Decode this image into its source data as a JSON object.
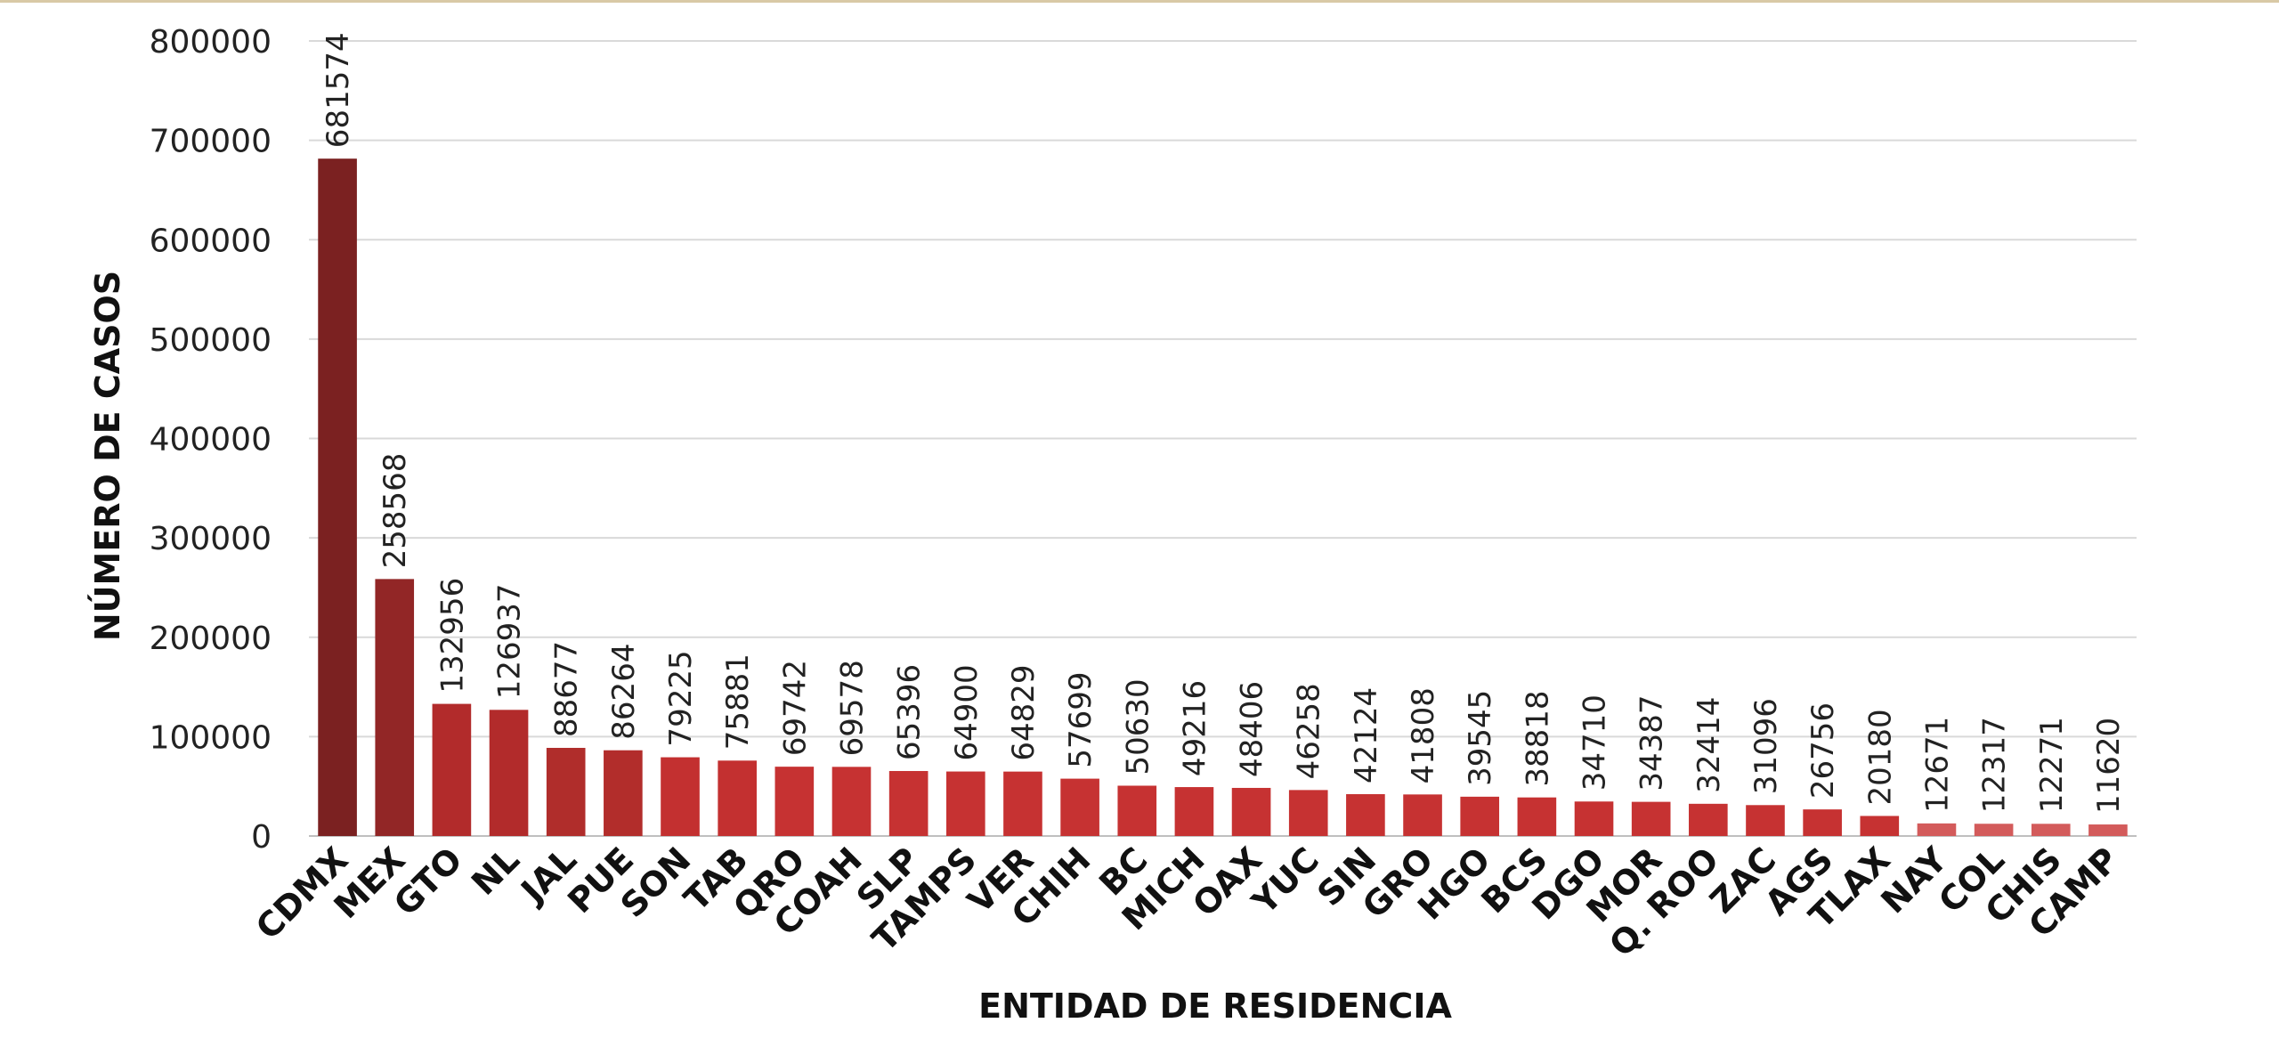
{
  "chart_data": {
    "type": "bar",
    "title": "",
    "xlabel": "ENTIDAD DE RESIDENCIA",
    "ylabel": "NÚMERO DE CASOS",
    "ylim": [
      0,
      800000
    ],
    "yticks": [
      "0",
      "100000",
      "200000",
      "300000",
      "400000",
      "500000",
      "600000",
      "700000",
      "800000"
    ],
    "grid": true,
    "categories": [
      "CDMX",
      "MEX",
      "GTO",
      "NL",
      "JAL",
      "PUE",
      "SON",
      "TAB",
      "QRO",
      "COAH",
      "SLP",
      "TAMPS",
      "VER",
      "CHIH",
      "BC",
      "MICH",
      "OAX",
      "YUC",
      "SIN",
      "GRO",
      "HGO",
      "BCS",
      "DGO",
      "MOR",
      "Q. ROO",
      "ZAC",
      "AGS",
      "TLAX",
      "NAY",
      "COL",
      "CHIS",
      "CAMP"
    ],
    "values": [
      681574,
      258568,
      132956,
      126937,
      88677,
      86264,
      79225,
      75881,
      69742,
      69578,
      65396,
      64900,
      64829,
      57699,
      50630,
      49216,
      48406,
      46258,
      42124,
      41808,
      39545,
      38818,
      34710,
      34387,
      32414,
      31096,
      26756,
      20180,
      12671,
      12317,
      12271,
      11620
    ],
    "colors": [
      "#7b2121",
      "#922626",
      "#b22b2b",
      "#b22b2b",
      "#b02d2b",
      "#b22d2b",
      "#c33030",
      "#c33030",
      "#c63232",
      "#c63232",
      "#c63232",
      "#c63232",
      "#c63232",
      "#c63232",
      "#c63232",
      "#c63232",
      "#c63232",
      "#c63232",
      "#c63232",
      "#c63232",
      "#c63232",
      "#c63232",
      "#c63232",
      "#c63232",
      "#c63232",
      "#c63232",
      "#c63232",
      "#c63232",
      "#d35b5b",
      "#d35b5b",
      "#d35b5b",
      "#d35b5b"
    ]
  }
}
